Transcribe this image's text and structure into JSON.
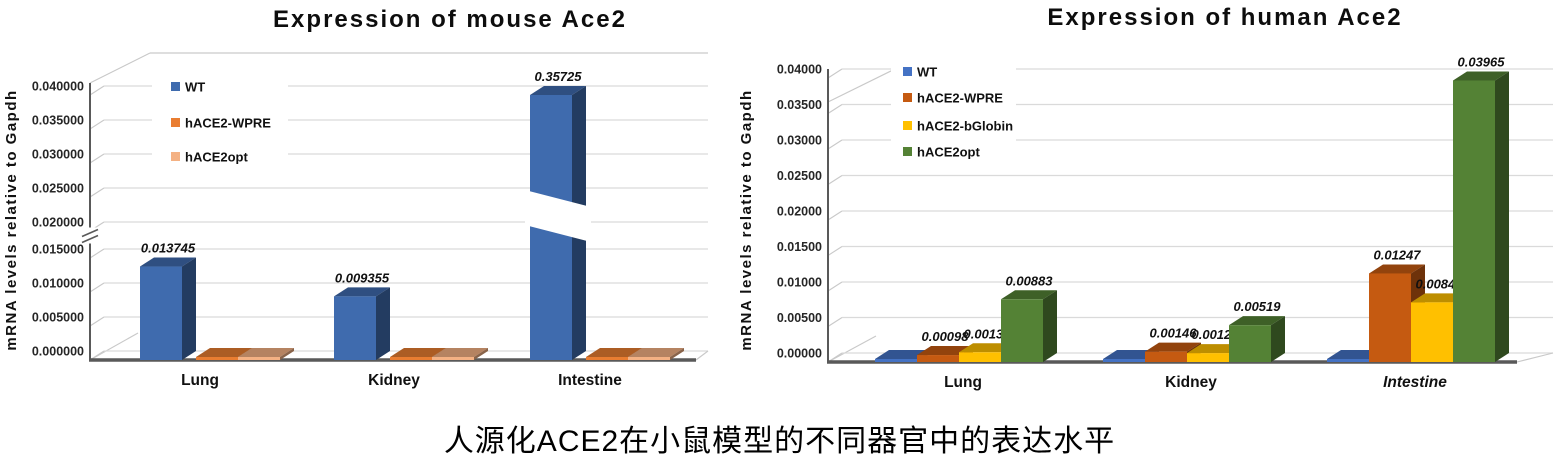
{
  "caption": "人源化ACE2在小鼠模型的不同器官中的表达水平",
  "chart_data": [
    {
      "type": "bar",
      "style": "3d",
      "title": "Expression of mouse Ace2",
      "ylabel": "mRNA levels relative to Gapdh",
      "y_ticks": [
        "0.040000",
        "0.035000",
        "0.030000",
        "0.025000",
        "0.020000",
        "0.015000",
        "0.010000",
        "0.005000",
        "0.000000"
      ],
      "ylim": [
        0,
        0.04
      ],
      "y_step": 0.005,
      "axis_break": {
        "between": [
          0.015,
          0.02
        ]
      },
      "grid": true,
      "legend_position": "inside top-left",
      "categories": [
        "Lung",
        "Kidney",
        "Intestine"
      ],
      "series": [
        {
          "name": "WT",
          "color": "#3F6BAE",
          "values": [
            0.013745,
            0.009355,
            0.35725
          ],
          "labels": [
            "0.013745",
            "0.009355",
            "0.35725"
          ],
          "broken": [
            false,
            false,
            true
          ]
        },
        {
          "name": "hACE2-WPRE",
          "color": "#E97D31",
          "values": [
            null,
            null,
            null
          ],
          "labels": [
            null,
            null,
            null
          ]
        },
        {
          "name": "hACE2opt",
          "color": "#F4B183",
          "values": [
            null,
            null,
            null
          ],
          "labels": [
            null,
            null,
            null
          ]
        }
      ]
    },
    {
      "type": "bar",
      "style": "3d",
      "title": "Expression of human Ace2",
      "ylabel": "mRNA levels relative to Gapdh",
      "y_ticks": [
        "0.04000",
        "0.03500",
        "0.03000",
        "0.02500",
        "0.02000",
        "0.01500",
        "0.01000",
        "0.00500",
        "0.00000"
      ],
      "ylim": [
        0,
        0.04
      ],
      "y_step": 0.005,
      "grid": true,
      "legend_position": "inside top-left",
      "categories": [
        "Lung",
        "Kidney",
        "Intestine"
      ],
      "series": [
        {
          "name": "WT",
          "color": "#4472C4",
          "values": [
            null,
            null,
            null
          ],
          "labels": [
            null,
            null,
            null
          ]
        },
        {
          "name": "hACE2-WPRE",
          "color": "#C55A11",
          "values": [
            0.00098,
            0.00146,
            0.01247
          ],
          "labels": [
            "0.00098",
            "0.00146",
            "0.01247"
          ]
        },
        {
          "name": "hACE2-bGlobin",
          "color": "#FFC000",
          "values": [
            0.00137,
            0.00125,
            0.0084
          ],
          "labels": [
            "0.00137",
            "0.00125",
            "0.00840"
          ]
        },
        {
          "name": "hACE2opt",
          "color": "#548235",
          "values": [
            0.00883,
            0.00519,
            0.03965
          ],
          "labels": [
            "0.00883",
            "0.00519",
            "0.03965"
          ]
        }
      ]
    }
  ]
}
